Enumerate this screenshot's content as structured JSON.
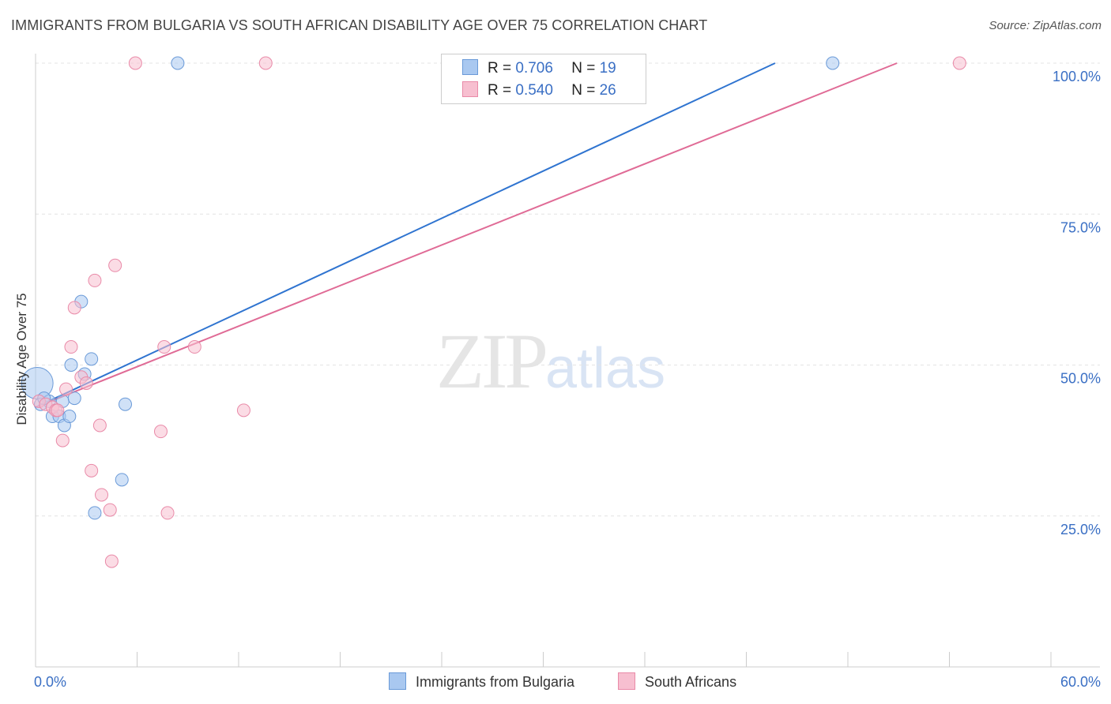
{
  "title": "IMMIGRANTS FROM BULGARIA VS SOUTH AFRICAN DISABILITY AGE OVER 75 CORRELATION CHART",
  "source": "Source: ZipAtlas.com",
  "watermark": {
    "zip": "ZIP",
    "atlas": "atlas"
  },
  "legend": {
    "row1": {
      "r_label": "R =",
      "r_value": "0.706",
      "n_label": "N =",
      "n_value": "19"
    },
    "row2": {
      "r_label": "R =",
      "r_value": "0.540",
      "n_label": "N =",
      "n_value": "26"
    }
  },
  "colors": {
    "blue_fill": "#a9c8f0",
    "blue_stroke": "#6a9ad8",
    "blue_line": "#2f74d0",
    "pink_fill": "#f7bfd0",
    "pink_stroke": "#e98aa8",
    "pink_line": "#e06b96",
    "axis_text": "#3a6fc4",
    "grid": "#e4e4e4"
  },
  "chart_data": {
    "type": "scatter",
    "title": "IMMIGRANTS FROM BULGARIA VS SOUTH AFRICAN DISABILITY AGE OVER 75 CORRELATION CHART",
    "xlabel": "",
    "ylabel": "Disability Age Over 75",
    "xlim": [
      0,
      60
    ],
    "ylim": [
      0,
      105
    ],
    "x_tick_labels": [
      {
        "value": 0,
        "label": "0.0%"
      },
      {
        "value": 60,
        "label": "60.0%"
      }
    ],
    "y_tick_labels": [
      {
        "value": 25,
        "label": "25.0%"
      },
      {
        "value": 50,
        "label": "50.0%"
      },
      {
        "value": 75,
        "label": "75.0%"
      },
      {
        "value": 100,
        "label": "100.0%"
      }
    ],
    "series": [
      {
        "name": "Immigrants from Bulgaria",
        "color": "blue",
        "points": [
          {
            "x": 0.1,
            "y": 47.0,
            "big": true
          },
          {
            "x": 0.3,
            "y": 43.5
          },
          {
            "x": 0.8,
            "y": 44.0
          },
          {
            "x": 1.0,
            "y": 41.5
          },
          {
            "x": 1.4,
            "y": 41.5
          },
          {
            "x": 1.7,
            "y": 40.0
          },
          {
            "x": 2.0,
            "y": 41.5
          },
          {
            "x": 1.6,
            "y": 44.0
          },
          {
            "x": 2.3,
            "y": 44.5
          },
          {
            "x": 2.1,
            "y": 50.0
          },
          {
            "x": 2.9,
            "y": 48.5
          },
          {
            "x": 3.3,
            "y": 51.0
          },
          {
            "x": 2.7,
            "y": 60.5
          },
          {
            "x": 5.3,
            "y": 43.5
          },
          {
            "x": 5.1,
            "y": 31.0
          },
          {
            "x": 3.5,
            "y": 25.5
          },
          {
            "x": 8.4,
            "y": 100.0
          },
          {
            "x": 47.1,
            "y": 100.0
          },
          {
            "x": 0.5,
            "y": 44.5
          }
        ],
        "trend": {
          "x1": 0,
          "y1": 43.0,
          "x2": 43.7,
          "y2": 100.0
        }
      },
      {
        "name": "South Africans",
        "color": "pink",
        "points": [
          {
            "x": 0.2,
            "y": 44.0
          },
          {
            "x": 0.6,
            "y": 43.5
          },
          {
            "x": 1.0,
            "y": 43.0
          },
          {
            "x": 1.2,
            "y": 42.5
          },
          {
            "x": 1.6,
            "y": 37.5
          },
          {
            "x": 1.8,
            "y": 46.0
          },
          {
            "x": 2.1,
            "y": 53.0
          },
          {
            "x": 2.3,
            "y": 59.5
          },
          {
            "x": 2.7,
            "y": 48.0
          },
          {
            "x": 3.0,
            "y": 47.0
          },
          {
            "x": 3.3,
            "y": 32.5
          },
          {
            "x": 3.5,
            "y": 64.0
          },
          {
            "x": 3.8,
            "y": 40.0
          },
          {
            "x": 3.9,
            "y": 28.5
          },
          {
            "x": 4.4,
            "y": 26.0
          },
          {
            "x": 4.5,
            "y": 17.5
          },
          {
            "x": 4.7,
            "y": 66.5
          },
          {
            "x": 7.4,
            "y": 39.0
          },
          {
            "x": 7.6,
            "y": 53.0
          },
          {
            "x": 7.8,
            "y": 25.5
          },
          {
            "x": 9.4,
            "y": 53.0
          },
          {
            "x": 12.3,
            "y": 42.5
          },
          {
            "x": 5.9,
            "y": 100.0
          },
          {
            "x": 13.6,
            "y": 100.0
          },
          {
            "x": 54.6,
            "y": 100.0
          },
          {
            "x": 1.3,
            "y": 42.5
          }
        ],
        "trend": {
          "x1": 0,
          "y1": 43.0,
          "x2": 50.9,
          "y2": 100.0
        }
      }
    ]
  },
  "bottom_legend": {
    "item1": "Immigrants from Bulgaria",
    "item2": "South Africans"
  }
}
